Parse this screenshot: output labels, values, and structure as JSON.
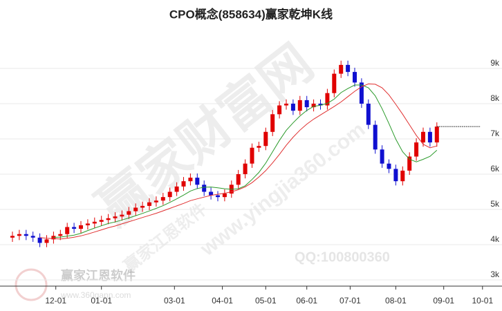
{
  "chart_data": {
    "type": "candlestick",
    "title": "CPO概念(858634)赢家乾坤K线",
    "watermarks": [
      "赢家财富网",
      "www.yingjia360.com",
      "赢家江恩软件",
      "QQ:100800360",
      "赢家江恩软件",
      "www.360gann.com"
    ],
    "up_color": "#e00000",
    "down_color": "#1010d0",
    "x": [
      0,
      3,
      6,
      9,
      12,
      15,
      18,
      21,
      24,
      27,
      30,
      33,
      36,
      39,
      42,
      45,
      48,
      51,
      54,
      57,
      60,
      63,
      66,
      69,
      72,
      75,
      78,
      81,
      84,
      87,
      90,
      93,
      96,
      99,
      102,
      105,
      108,
      111,
      114,
      117,
      120,
      123,
      126,
      129,
      132,
      135,
      138,
      141,
      144,
      147,
      150,
      153,
      156,
      159,
      162,
      165,
      168,
      171,
      174,
      177,
      180,
      183,
      186
    ],
    "open": [
      4200,
      4250,
      4300,
      4250,
      4200,
      4050,
      4150,
      4250,
      4300,
      4500,
      4450,
      4550,
      4600,
      4650,
      4700,
      4750,
      4800,
      4850,
      4950,
      5050,
      5100,
      5200,
      5250,
      5350,
      5500,
      5650,
      5800,
      5900,
      5700,
      5500,
      5400,
      5350,
      5450,
      5700,
      6000,
      6300,
      6750,
      6800,
      7200,
      7700,
      7950,
      8000,
      7800,
      8100,
      7900,
      8000,
      7950,
      8300,
      8850,
      9100,
      8900,
      8600,
      8000,
      7400,
      6700,
      6300,
      6150,
      5800,
      6100,
      6500,
      6900,
      7200,
      6900
    ],
    "high": [
      4370,
      4420,
      4420,
      4370,
      4320,
      4270,
      4370,
      4420,
      4620,
      4620,
      4670,
      4720,
      4770,
      4820,
      4870,
      4920,
      4970,
      5070,
      5170,
      5220,
      5320,
      5370,
      5470,
      5620,
      5770,
      5920,
      6020,
      6020,
      5820,
      5620,
      5520,
      5570,
      5820,
      6120,
      6420,
      6870,
      6920,
      7320,
      7820,
      8070,
      8120,
      8120,
      8220,
      8220,
      8120,
      8120,
      8420,
      8970,
      9220,
      9220,
      9020,
      8720,
      8120,
      7520,
      6820,
      6420,
      6270,
      6220,
      6620,
      7020,
      7320,
      7320,
      7470
    ],
    "low": [
      4080,
      4130,
      4130,
      4080,
      3930,
      3930,
      4030,
      4130,
      4180,
      4330,
      4330,
      4430,
      4480,
      4530,
      4580,
      4630,
      4680,
      4730,
      4830,
      4930,
      4980,
      5080,
      5130,
      5230,
      5380,
      5530,
      5680,
      5580,
      5380,
      5280,
      5230,
      5230,
      5330,
      5580,
      5880,
      6180,
      6630,
      6680,
      7080,
      7580,
      7830,
      7680,
      7680,
      7780,
      7780,
      7830,
      7830,
      8180,
      8730,
      8780,
      8480,
      7880,
      7280,
      6580,
      6180,
      6030,
      5680,
      5680,
      5980,
      6380,
      6780,
      6780,
      6780
    ],
    "close": [
      4250,
      4300,
      4250,
      4200,
      4050,
      4150,
      4250,
      4300,
      4500,
      4450,
      4550,
      4600,
      4650,
      4700,
      4750,
      4800,
      4850,
      4950,
      5050,
      5100,
      5200,
      5250,
      5350,
      5500,
      5650,
      5800,
      5900,
      5700,
      5500,
      5400,
      5350,
      5450,
      5700,
      6000,
      6300,
      6750,
      6800,
      7200,
      7700,
      7950,
      8000,
      7800,
      8100,
      7900,
      8000,
      7950,
      8300,
      8850,
      9100,
      8900,
      8600,
      8000,
      7400,
      6700,
      6300,
      6150,
      5800,
      6100,
      6500,
      6900,
      7200,
      6900,
      7350
    ],
    "series": [
      {
        "color": "#2a9a2a",
        "values": [
          null,
          null,
          null,
          null,
          null,
          null,
          4207,
          4214,
          4243,
          4271,
          4321,
          4400,
          4471,
          4536,
          4600,
          4643,
          4700,
          4757,
          4821,
          4886,
          4957,
          5029,
          5107,
          5200,
          5300,
          5407,
          5521,
          5593,
          5629,
          5636,
          5614,
          5586,
          5571,
          5586,
          5671,
          5850,
          6050,
          6314,
          6636,
          6957,
          7243,
          7457,
          7650,
          7807,
          7921,
          7957,
          8007,
          8129,
          8314,
          8429,
          8529,
          8529,
          8450,
          8221,
          7857,
          7436,
          6993,
          6636,
          6421,
          6350,
          6421,
          6507,
          6679
        ]
      },
      {
        "color": "#e03030",
        "values": [
          null,
          null,
          null,
          null,
          4200,
          4180,
          4170,
          4160,
          4180,
          4210,
          4250,
          4300,
          4360,
          4420,
          4480,
          4530,
          4590,
          4650,
          4710,
          4770,
          4830,
          4890,
          4960,
          5030,
          5100,
          5170,
          5250,
          5300,
          5350,
          5400,
          5430,
          5460,
          5500,
          5560,
          5640,
          5760,
          5920,
          6100,
          6320,
          6560,
          6820,
          7050,
          7250,
          7420,
          7560,
          7680,
          7800,
          7920,
          8050,
          8200,
          8350,
          8480,
          8560,
          8550,
          8450,
          8250,
          7980,
          7700,
          7400,
          7100,
          6850,
          6750,
          6800
        ]
      }
    ],
    "xlim": [
      0,
      210
    ],
    "xticks": [
      {
        "value": 19,
        "label": "12-01"
      },
      {
        "value": 39,
        "label": "01-01"
      },
      {
        "value": 71,
        "label": "03-01"
      },
      {
        "value": 92,
        "label": "04-01"
      },
      {
        "value": 111,
        "label": "05-01"
      },
      {
        "value": 129,
        "label": "06-01"
      },
      {
        "value": 148,
        "label": "07-01"
      },
      {
        "value": 168,
        "label": "08-01"
      },
      {
        "value": 189,
        "label": "09-01"
      },
      {
        "value": 206,
        "label": "10-01"
      }
    ],
    "ylim": [
      2824,
      9843
    ],
    "yticks": [
      {
        "value": 3000,
        "label": "3k"
      },
      {
        "value": 4000,
        "label": "4k"
      },
      {
        "value": 5000,
        "label": "5k"
      },
      {
        "value": 6000,
        "label": "6k"
      },
      {
        "value": 7000,
        "label": "7k"
      },
      {
        "value": 8000,
        "label": "8k"
      },
      {
        "value": 9000,
        "label": "9k"
      }
    ],
    "grid": true
  }
}
